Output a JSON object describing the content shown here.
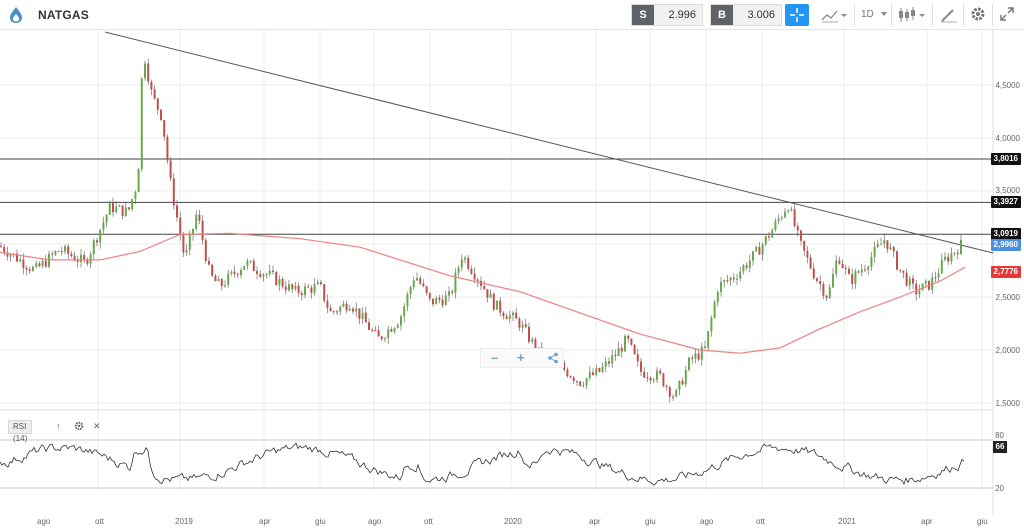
{
  "header": {
    "symbol": "NATGAS",
    "sell_tag": "S",
    "sell_price": "2.996",
    "buy_tag": "B",
    "buy_price": "3.006",
    "timeframe": "1D",
    "accent_color": "#2196f3"
  },
  "price_labels": {
    "res1": "3,8016",
    "res2": "3,3927",
    "res3": "3,0919",
    "current": "2,9960",
    "ma": "2,7776"
  },
  "y_ticks": [
    "4,5000",
    "4,0000",
    "3,5000",
    "2,5000",
    "2,0000",
    "1,5000"
  ],
  "x_ticks": [
    "ago",
    "ott",
    "2019",
    "apr",
    "giu",
    "ago",
    "ott",
    "2020",
    "apr",
    "giu",
    "ago",
    "ott",
    "2021",
    "apr",
    "giu"
  ],
  "zoom": {
    "minus": "–",
    "plus": "+"
  },
  "rsi": {
    "label": "RSI (14)",
    "up_icon": "↑",
    "close_icon": "✕",
    "tick_high": "80",
    "tick_low": "20",
    "value": "66"
  },
  "colors": {
    "current_label": "#4a90e2",
    "ma_label": "#e53935",
    "resistance_label": "#111111",
    "ma_line": "#f08080"
  }
}
